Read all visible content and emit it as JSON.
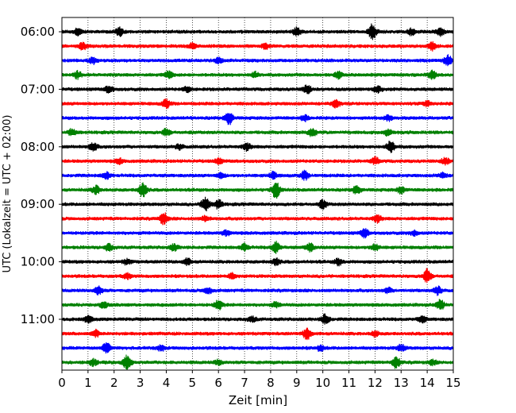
{
  "chart_data": {
    "type": "line",
    "title": "",
    "xlabel": "Zeit  [min]",
    "ylabel": "UTC (Lokalzeit = UTC + 02:00)",
    "xlim": [
      0,
      15
    ],
    "x_ticks": [
      "0",
      "1",
      "2",
      "3",
      "4",
      "5",
      "6",
      "7",
      "8",
      "9",
      "10",
      "11",
      "12",
      "13",
      "14",
      "15"
    ],
    "y_ticks": [
      "06:00",
      "07:00",
      "08:00",
      "09:00",
      "10:00",
      "11:00"
    ],
    "grid": "vertical dotted",
    "line_colors": [
      "#000000",
      "#ff0000",
      "#0000ff",
      "#008000"
    ],
    "series": [
      {
        "start": "06:00",
        "color": "#000000",
        "events": [
          [
            0.6,
            4
          ],
          [
            2.2,
            5
          ],
          [
            9.0,
            5
          ],
          [
            11.9,
            10
          ],
          [
            13.4,
            4
          ],
          [
            14.5,
            5
          ]
        ]
      },
      {
        "start": "06:15",
        "color": "#ff0000",
        "events": [
          [
            0.8,
            4
          ],
          [
            5.0,
            3
          ],
          [
            7.8,
            3
          ],
          [
            14.2,
            5
          ]
        ]
      },
      {
        "start": "06:30",
        "color": "#0000ff",
        "events": [
          [
            1.2,
            4
          ],
          [
            6.0,
            3
          ],
          [
            14.8,
            6
          ]
        ]
      },
      {
        "start": "06:45",
        "color": "#008000",
        "events": [
          [
            0.6,
            4
          ],
          [
            4.1,
            4
          ],
          [
            7.4,
            3
          ],
          [
            10.6,
            4
          ],
          [
            14.2,
            5
          ]
        ]
      },
      {
        "start": "07:00",
        "color": "#000000",
        "events": [
          [
            1.8,
            4
          ],
          [
            4.8,
            3
          ],
          [
            9.4,
            5
          ],
          [
            12.1,
            4
          ]
        ]
      },
      {
        "start": "07:15",
        "color": "#ff0000",
        "events": [
          [
            4.0,
            5
          ],
          [
            10.5,
            5
          ],
          [
            14.0,
            3
          ]
        ]
      },
      {
        "start": "07:30",
        "color": "#0000ff",
        "events": [
          [
            6.4,
            8
          ],
          [
            9.3,
            3
          ],
          [
            12.5,
            3
          ]
        ]
      },
      {
        "start": "07:45",
        "color": "#008000",
        "events": [
          [
            0.4,
            4
          ],
          [
            4.0,
            4
          ],
          [
            9.6,
            5
          ],
          [
            12.5,
            4
          ]
        ]
      },
      {
        "start": "08:00",
        "color": "#000000",
        "events": [
          [
            1.2,
            5
          ],
          [
            4.5,
            3
          ],
          [
            7.1,
            4
          ],
          [
            12.6,
            7
          ]
        ]
      },
      {
        "start": "08:15",
        "color": "#ff0000",
        "events": [
          [
            2.2,
            3
          ],
          [
            6.0,
            3
          ],
          [
            12.0,
            4
          ],
          [
            14.7,
            4
          ]
        ]
      },
      {
        "start": "08:30",
        "color": "#0000ff",
        "events": [
          [
            1.7,
            4
          ],
          [
            6.1,
            3
          ],
          [
            8.1,
            4
          ],
          [
            9.3,
            5
          ],
          [
            14.6,
            3
          ]
        ]
      },
      {
        "start": "08:45",
        "color": "#008000",
        "events": [
          [
            1.3,
            5
          ],
          [
            3.1,
            9
          ],
          [
            8.2,
            10
          ],
          [
            11.3,
            5
          ],
          [
            13.0,
            4
          ]
        ]
      },
      {
        "start": "09:00",
        "color": "#000000",
        "events": [
          [
            5.5,
            9
          ],
          [
            6.0,
            5
          ],
          [
            10.0,
            5
          ]
        ]
      },
      {
        "start": "09:15",
        "color": "#ff0000",
        "events": [
          [
            3.9,
            7
          ],
          [
            5.5,
            3
          ],
          [
            12.1,
            4
          ]
        ]
      },
      {
        "start": "09:30",
        "color": "#0000ff",
        "events": [
          [
            6.3,
            3
          ],
          [
            11.6,
            5
          ],
          [
            13.5,
            3
          ]
        ]
      },
      {
        "start": "09:45",
        "color": "#008000",
        "events": [
          [
            1.8,
            4
          ],
          [
            4.3,
            4
          ],
          [
            7.0,
            4
          ],
          [
            8.2,
            7
          ],
          [
            9.5,
            5
          ],
          [
            12.0,
            4
          ]
        ]
      },
      {
        "start": "10:00",
        "color": "#000000",
        "events": [
          [
            2.5,
            3
          ],
          [
            4.8,
            4
          ],
          [
            8.2,
            4
          ],
          [
            10.6,
            4
          ]
        ]
      },
      {
        "start": "10:15",
        "color": "#ff0000",
        "events": [
          [
            2.5,
            3
          ],
          [
            6.5,
            3
          ],
          [
            14.0,
            8
          ]
        ]
      },
      {
        "start": "10:30",
        "color": "#0000ff",
        "events": [
          [
            1.4,
            5
          ],
          [
            5.6,
            4
          ],
          [
            12.5,
            3
          ],
          [
            14.4,
            5
          ]
        ]
      },
      {
        "start": "10:45",
        "color": "#008000",
        "events": [
          [
            1.6,
            4
          ],
          [
            6.0,
            6
          ],
          [
            8.2,
            3
          ],
          [
            14.5,
            6
          ]
        ]
      },
      {
        "start": "11:00",
        "color": "#000000",
        "events": [
          [
            1.0,
            4
          ],
          [
            7.3,
            3
          ],
          [
            10.1,
            6
          ],
          [
            13.8,
            4
          ]
        ]
      },
      {
        "start": "11:15",
        "color": "#ff0000",
        "events": [
          [
            1.3,
            4
          ],
          [
            9.4,
            7
          ],
          [
            12.0,
            3
          ]
        ]
      },
      {
        "start": "11:30",
        "color": "#0000ff",
        "events": [
          [
            1.7,
            6
          ],
          [
            3.8,
            3
          ],
          [
            9.9,
            3
          ],
          [
            13.0,
            4
          ]
        ]
      },
      {
        "start": "11:45",
        "color": "#008000",
        "events": [
          [
            1.2,
            4
          ],
          [
            2.5,
            9
          ],
          [
            6.0,
            3
          ],
          [
            12.8,
            7
          ],
          [
            14.2,
            3
          ]
        ]
      }
    ]
  }
}
